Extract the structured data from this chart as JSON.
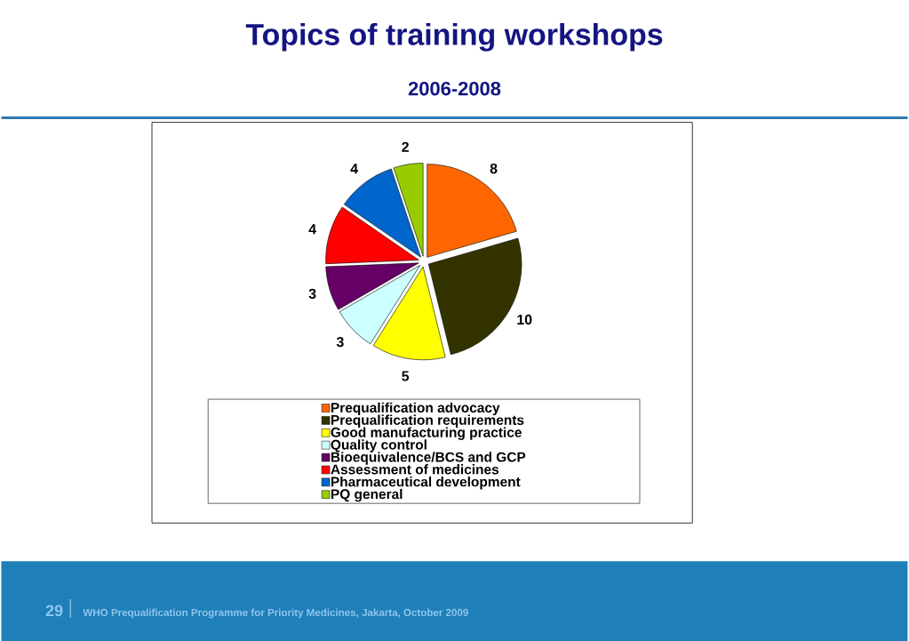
{
  "chart_data": {
    "type": "pie",
    "title": "Topics of training workshops",
    "subtitle": "2006-2008",
    "categories": [
      "Prequalification advocacy",
      "Prequalification requirements",
      "Good manufacturing practice",
      "Quality control",
      "Bioequivalence/BCS and GCP",
      "Assessment of medicines",
      "Pharmaceutical development",
      "PQ general"
    ],
    "values": [
      8,
      10,
      5,
      3,
      3,
      4,
      4,
      2
    ],
    "colors": [
      "#ff6600",
      "#333300",
      "#ffff00",
      "#ccffff",
      "#660066",
      "#ff0000",
      "#0066cc",
      "#99cc00"
    ],
    "data_labels": true,
    "legend": "bottom",
    "annotations": [
      "29",
      "WHO Prequalification Programme for Priority Medicines, Jakarta, October 2009"
    ]
  }
}
